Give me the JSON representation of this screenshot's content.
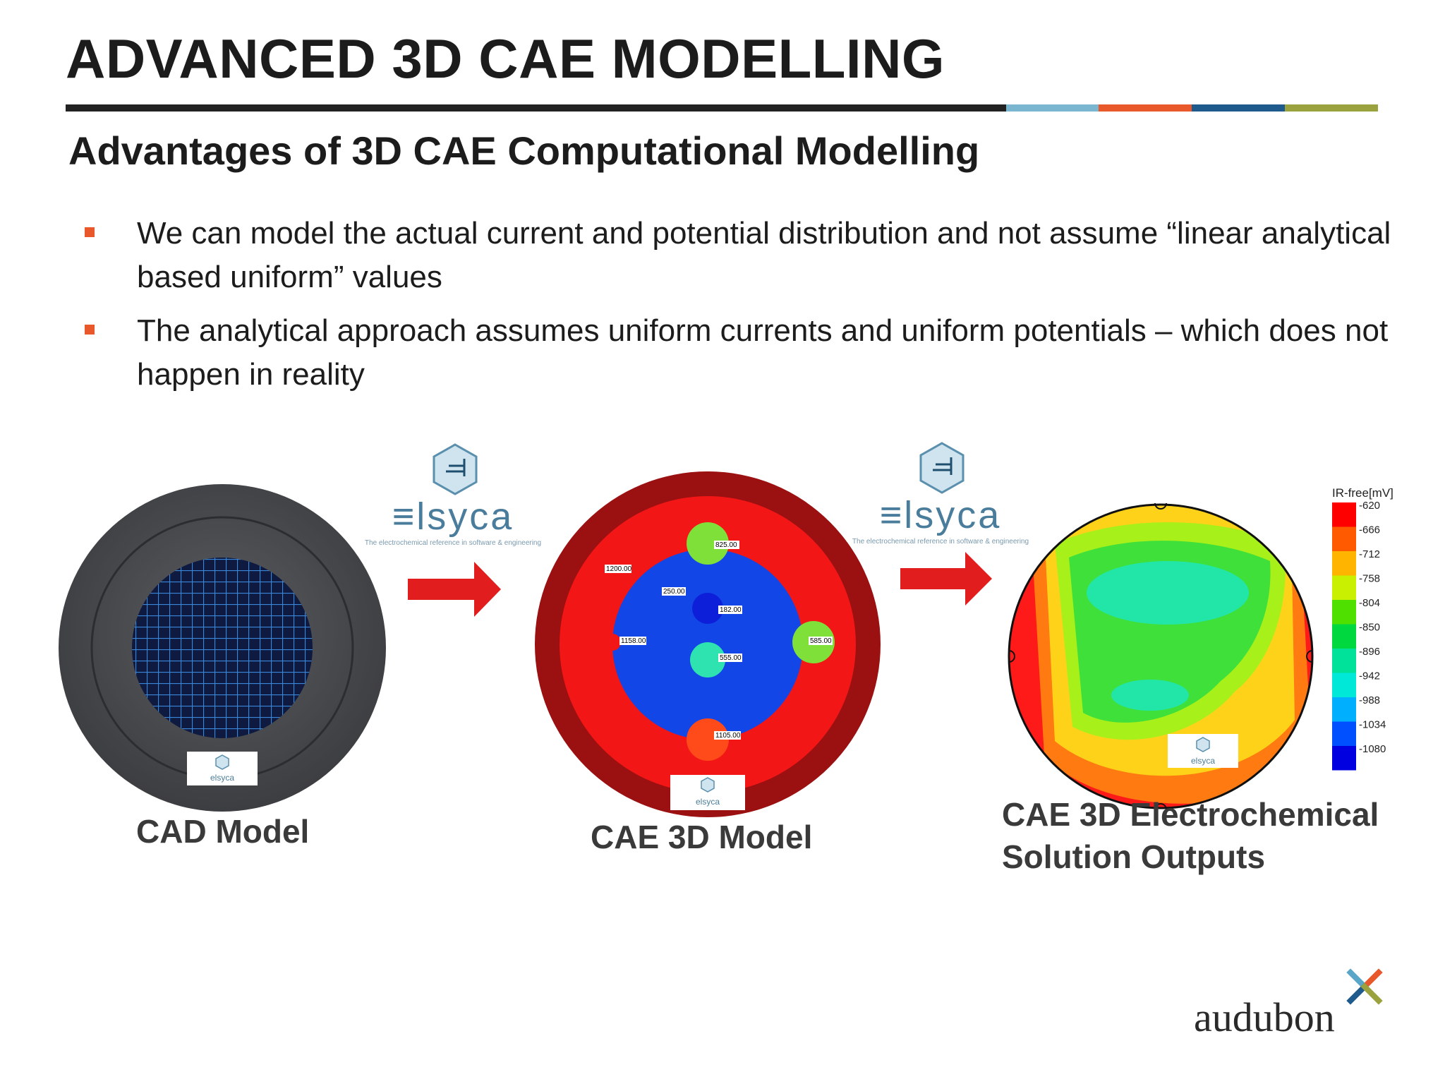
{
  "slide": {
    "title": "ADVANCED 3D CAE MODELLING",
    "subtitle": "Advantages of 3D CAE Computational Modelling",
    "bullets": [
      "We can model the actual current and potential distribution and not assume “linear analytical based uniform” values",
      "The analytical approach assumes uniform currents and uniform potentials – which does not happen in reality"
    ],
    "accent_colors": [
      "#222222",
      "#7ab6cf",
      "#e8582a",
      "#1e5a8c",
      "#99a23c"
    ]
  },
  "figure": {
    "captions": {
      "cad": "CAD Model",
      "cae": "CAE 3D Model",
      "solution_line1": "CAE 3D Electrochemical",
      "solution_line2": "Solution Outputs"
    },
    "elsyca": {
      "wordmark": "elsyca",
      "tagline": "The electrochemical reference in software & engineering"
    },
    "model_points": [
      "825.00",
      "1200.00",
      "250.00",
      "182.00",
      "1158.00",
      "585.00",
      "555.00",
      "1105.00"
    ],
    "legend": {
      "title": "IR-free[mV]",
      "values": [
        "-620",
        "-666",
        "-712",
        "-758",
        "-804",
        "-850",
        "-896",
        "-942",
        "-988",
        "-1034",
        "-1080"
      ],
      "colors": [
        "#ff0000",
        "#ff5a00",
        "#ffb400",
        "#c8f000",
        "#50e000",
        "#00d840",
        "#00e29a",
        "#00e8d8",
        "#00b0ff",
        "#0050ff",
        "#0000e0"
      ]
    }
  },
  "brand": {
    "name": "audubon"
  }
}
